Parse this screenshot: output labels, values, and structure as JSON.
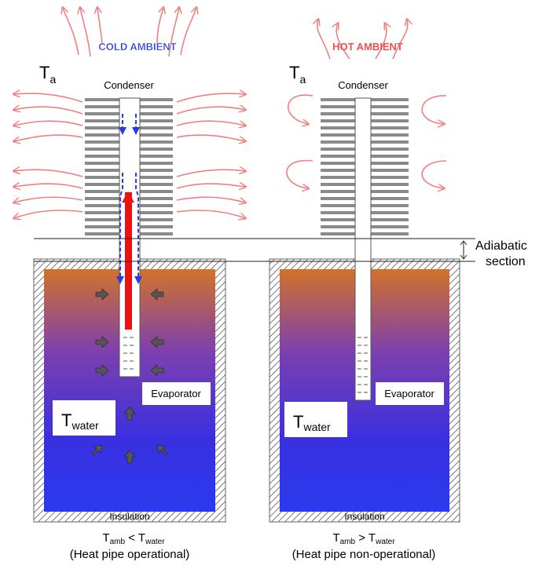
{
  "left": {
    "ambient": "COLD AMBIENT",
    "ta": {
      "main": "T",
      "sub": "a"
    },
    "condenser": "Condenser",
    "twater": {
      "main": "T",
      "sub": "water"
    },
    "evaporator": "Evaporator",
    "insulation": "Insulation",
    "relation": {
      "t1": "T",
      "s1": "amb",
      "op": "<",
      "t2": "T",
      "s2": "water"
    },
    "status": "(Heat pipe operational)"
  },
  "right": {
    "ambient": "HOT AMBIENT",
    "ta": {
      "main": "T",
      "sub": "a"
    },
    "condenser": "Condenser",
    "twater": {
      "main": "T",
      "sub": "water"
    },
    "evaporator": "Evaporator",
    "insulation": "Insulation",
    "relation": {
      "t1": "T",
      "s1": "amb",
      "op": ">",
      "t2": "T",
      "s2": "water"
    },
    "status": "(Heat pipe non-operational)"
  },
  "adiabatic": {
    "line1": "Adiabatic",
    "line2": "section"
  }
}
